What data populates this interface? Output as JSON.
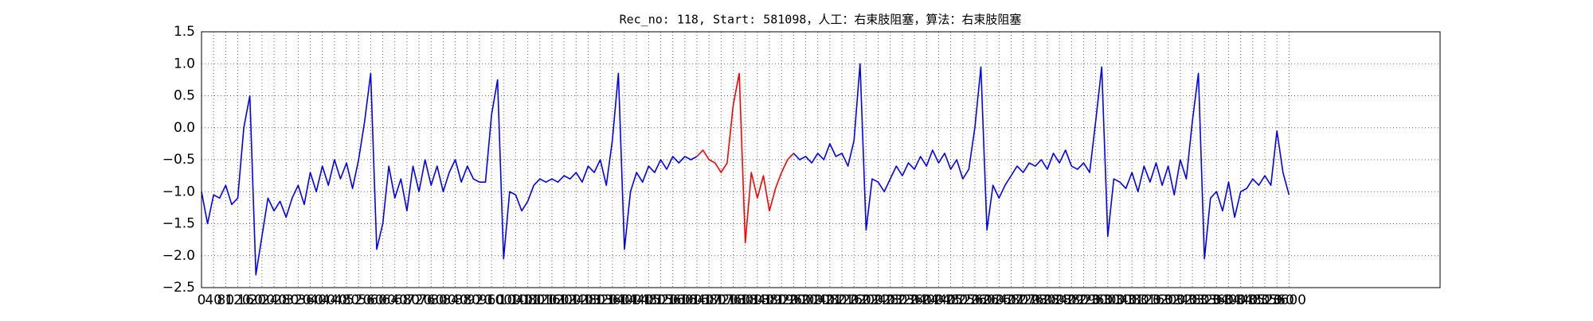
{
  "chart_data": {
    "type": "line",
    "title": "Rec_no: 118, Start: 581098，人工：右束肢阻塞，算法：右束肢阻塞",
    "x": [
      0,
      20,
      40,
      60,
      80,
      100,
      120,
      140,
      160,
      180,
      200,
      220,
      240,
      260,
      280,
      300,
      320,
      340,
      360,
      380,
      400,
      420,
      440,
      460,
      480,
      500,
      520,
      540,
      560,
      580,
      600,
      620,
      640,
      660,
      680,
      700,
      720,
      740,
      760,
      780,
      800,
      820,
      840,
      860,
      880,
      900,
      920,
      940,
      960,
      980,
      1000,
      1020,
      1040,
      1060,
      1080,
      1100,
      1120,
      1140,
      1160,
      1180,
      1200,
      1220,
      1240,
      1260,
      1280,
      1300,
      1320,
      1340,
      1360,
      1380,
      1400,
      1420,
      1440,
      1460,
      1480,
      1500,
      1520,
      1540,
      1560,
      1580,
      1600,
      1620,
      1640,
      1660,
      1680,
      1700,
      1720,
      1740,
      1760,
      1780,
      1800,
      1820,
      1840,
      1860,
      1880,
      1900,
      1920,
      1940,
      1960,
      1980,
      2000,
      2020,
      2040,
      2060,
      2080,
      2100,
      2120,
      2140,
      2160,
      2180,
      2200,
      2220,
      2240,
      2260,
      2280,
      2300,
      2320,
      2340,
      2360,
      2380,
      2400,
      2420,
      2440,
      2460,
      2480,
      2500,
      2520,
      2540,
      2560,
      2580,
      2600,
      2620,
      2640,
      2660,
      2680,
      2700,
      2720,
      2740,
      2760,
      2780,
      2800,
      2820,
      2840,
      2860,
      2880,
      2900,
      2920,
      2940,
      2960,
      2980,
      3000,
      3020,
      3040,
      3060,
      3080,
      3100,
      3120,
      3140,
      3160,
      3180,
      3200,
      3220,
      3240,
      3260,
      3280,
      3300,
      3320,
      3340,
      3360,
      3380,
      3400,
      3420,
      3440,
      3460,
      3480,
      3500,
      3520,
      3540,
      3560,
      3580,
      3600
    ],
    "series": [
      {
        "color": "#0000ff",
        "values": [
          -1.0,
          -1.5,
          -1.05,
          -1.1,
          -0.9,
          -1.2,
          -1.1,
          0.0,
          0.5,
          -2.3,
          -1.7,
          -1.1,
          -1.3,
          -1.15,
          -1.4,
          -1.1,
          -0.9,
          -1.2,
          -0.7,
          -1.0,
          -0.6,
          -0.9,
          -0.5,
          -0.8,
          -0.55,
          -0.95,
          -0.5,
          0.1,
          0.85,
          -1.9,
          -1.5,
          -0.6,
          -1.1,
          -0.8,
          -1.3,
          -0.6,
          -1.0,
          -0.5,
          -0.9,
          -0.6,
          -1.0,
          -0.7,
          -0.5,
          -0.85,
          -0.6,
          -0.8,
          -0.85,
          -0.85,
          0.2,
          0.75,
          -2.05,
          -1.0,
          -1.05,
          -1.3,
          -1.15,
          -0.9,
          -0.8,
          -0.85,
          -0.8,
          -0.85,
          -0.75,
          -0.8,
          -0.7,
          -0.85,
          -0.6,
          -0.7,
          -0.5,
          -0.9,
          -0.2,
          0.85,
          -1.9,
          -1.0,
          -0.7,
          -0.85,
          -0.6,
          -0.7,
          -0.5,
          -0.65,
          -0.45,
          -0.55,
          -0.45,
          -0.5,
          -0.45,
          null,
          null,
          null,
          null,
          null,
          null,
          null,
          null,
          null,
          null,
          null,
          null,
          null,
          null,
          null,
          -0.4,
          -0.5,
          -0.45,
          -0.55,
          -0.4,
          -0.5,
          -0.25,
          -0.45,
          -0.4,
          -0.6,
          -0.2,
          1.0,
          -1.6,
          -0.8,
          -0.85,
          -1.0,
          -0.8,
          -0.6,
          -0.75,
          -0.55,
          -0.65,
          -0.45,
          -0.6,
          -0.35,
          -0.55,
          -0.4,
          -0.65,
          -0.5,
          -0.8,
          -0.65,
          0.0,
          0.95,
          -1.6,
          -0.9,
          -1.1,
          -0.9,
          -0.75,
          -0.6,
          -0.7,
          -0.55,
          -0.6,
          -0.5,
          -0.65,
          -0.4,
          -0.55,
          -0.35,
          -0.6,
          -0.65,
          -0.55,
          -0.7,
          0.1,
          0.95,
          -1.7,
          -0.8,
          -0.85,
          -0.95,
          -0.7,
          -1.0,
          -0.6,
          -0.85,
          -0.55,
          -0.9,
          -0.6,
          -1.05,
          -0.5,
          -0.8,
          0.1,
          0.85,
          -2.05,
          -1.1,
          -1.0,
          -1.3,
          -0.85,
          -1.4,
          -1.0,
          -0.95,
          -0.8,
          -0.9,
          -0.75,
          -0.9,
          -0.05,
          -0.7,
          -1.05
        ]
      },
      {
        "color": "#ff0000",
        "values": [
          null,
          null,
          null,
          null,
          null,
          null,
          null,
          null,
          null,
          null,
          null,
          null,
          null,
          null,
          null,
          null,
          null,
          null,
          null,
          null,
          null,
          null,
          null,
          null,
          null,
          null,
          null,
          null,
          null,
          null,
          null,
          null,
          null,
          null,
          null,
          null,
          null,
          null,
          null,
          null,
          null,
          null,
          null,
          null,
          null,
          null,
          null,
          null,
          null,
          null,
          null,
          null,
          null,
          null,
          null,
          null,
          null,
          null,
          null,
          null,
          null,
          null,
          null,
          null,
          null,
          null,
          null,
          null,
          null,
          null,
          null,
          null,
          null,
          null,
          null,
          null,
          null,
          null,
          null,
          null,
          null,
          null,
          -0.45,
          -0.35,
          -0.5,
          -0.55,
          -0.7,
          -0.55,
          0.35,
          0.85,
          -1.8,
          -0.7,
          -1.1,
          -0.75,
          -1.3,
          -0.95,
          -0.7,
          -0.5,
          -0.4,
          null,
          null,
          null,
          null,
          null,
          null,
          null,
          null,
          null,
          null,
          null,
          null,
          null,
          null,
          null,
          null,
          null,
          null,
          null,
          null,
          null,
          null,
          null,
          null,
          null,
          null,
          null,
          null,
          null,
          null,
          null,
          null,
          null,
          null,
          null,
          null,
          null,
          null,
          null,
          null,
          null,
          null,
          null,
          null,
          null,
          null,
          null,
          null,
          null,
          null,
          null,
          null,
          null,
          null,
          null,
          null,
          null,
          null,
          null,
          null,
          null,
          null,
          null,
          null,
          null,
          null,
          null,
          null,
          null,
          null,
          null,
          null,
          null,
          null,
          null,
          null,
          null,
          null,
          null,
          null,
          null,
          null
        ]
      }
    ],
    "xlim": [
      0,
      4100
    ],
    "xticks": [
      0,
      40,
      80,
      120,
      160,
      200,
      240,
      280,
      320,
      360,
      400,
      440,
      480,
      520,
      560,
      600,
      640,
      680,
      720,
      760,
      800,
      840,
      880,
      920,
      960,
      1000,
      1040,
      1080,
      1120,
      1160,
      1200,
      1240,
      1280,
      1320,
      1360,
      1400,
      1440,
      1480,
      1520,
      1560,
      1600,
      1640,
      1680,
      1720,
      1760,
      1800,
      1840,
      1880,
      1920,
      1960,
      2000,
      2040,
      2080,
      2120,
      2160,
      2200,
      2240,
      2280,
      2320,
      2360,
      2400,
      2440,
      2480,
      2520,
      2560,
      2600,
      2640,
      2680,
      2720,
      2760,
      2800,
      2840,
      2880,
      2920,
      2960,
      3000,
      3040,
      3080,
      3120,
      3160,
      3200,
      3240,
      3280,
      3320,
      3360,
      3400,
      3440,
      3480,
      3520,
      3560,
      3600
    ],
    "ylim": [
      -2.5,
      1.5
    ],
    "yticks": [
      {
        "value": -2.5,
        "label": "−2.5"
      },
      {
        "value": -2,
        "label": "−2.0"
      },
      {
        "value": -1.5,
        "label": "−1.5"
      },
      {
        "value": -1,
        "label": "−1.0"
      },
      {
        "value": -0.5,
        "label": "−0.5"
      },
      {
        "value": 0,
        "label": "0.0"
      },
      {
        "value": 0.5,
        "label": "0.5"
      },
      {
        "value": 1,
        "label": "1.0"
      },
      1.5
    ],
    "grid": true
  }
}
